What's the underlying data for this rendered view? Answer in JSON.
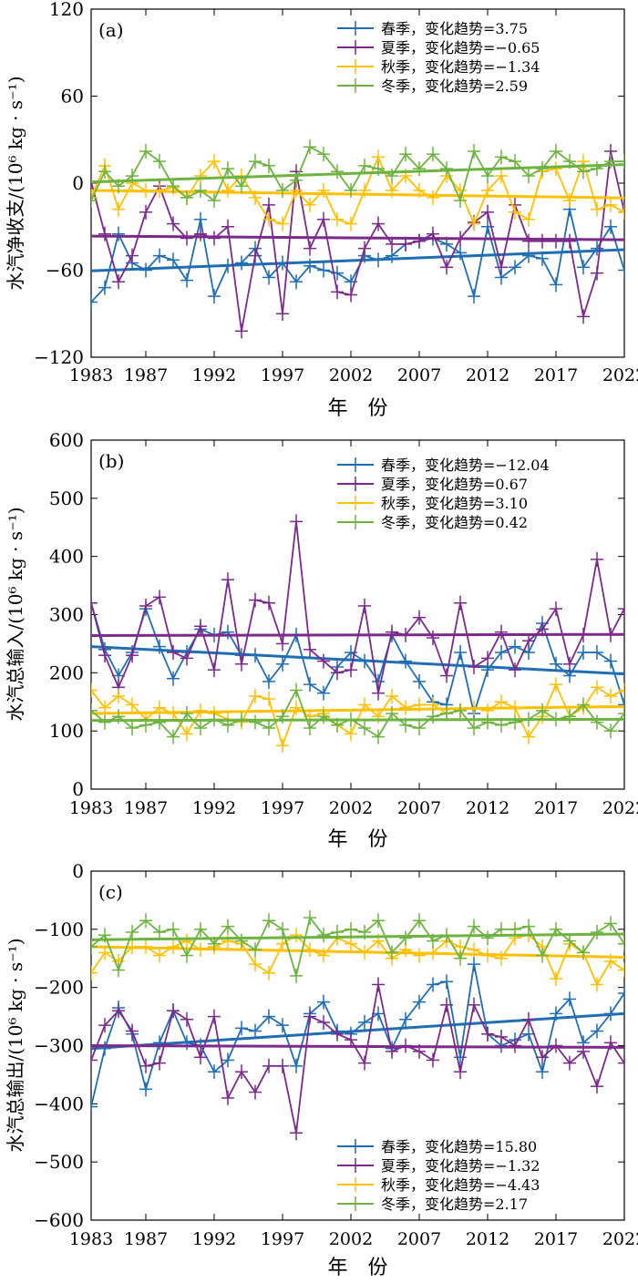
{
  "chart_data": [
    {
      "type": "line",
      "panel_label": "(a)",
      "xlabel": "年　份",
      "ylabel": "水汽净收支/(10⁶ kg · s⁻¹)",
      "ylim": [
        -120,
        120
      ],
      "yticks": [
        -120,
        -60,
        0,
        60,
        120
      ],
      "xlim": [
        1983,
        2022
      ],
      "xticks": [
        1983,
        1987,
        1992,
        1997,
        2002,
        2007,
        2012,
        2017,
        2022
      ],
      "legend_position": "top-right",
      "series": [
        {
          "name": "春季，变化趋势=3.75",
          "color": "#1f6eb4",
          "trend": [
            -60.5,
            -45.9
          ],
          "values": [
            -82,
            -72,
            -35,
            -55,
            -60,
            -50,
            -53,
            -67,
            -25,
            -78,
            -57,
            -55,
            -45,
            -65,
            -55,
            -68,
            -57,
            -60,
            -62,
            -68,
            -50,
            -53,
            -50,
            -42,
            -40,
            -38,
            -42,
            -48,
            -78,
            -30,
            -65,
            -58,
            -50,
            -52,
            -70,
            -18,
            -58,
            -45,
            -30,
            -60
          ]
        },
        {
          "name": "夏季，变化趋势=−0.65",
          "color": "#7b2a8c",
          "trend": [
            -36.5,
            -39.0
          ],
          "values": [
            1,
            -35,
            -68,
            -50,
            -20,
            -2,
            -28,
            -38,
            -35,
            -38,
            -30,
            -102,
            -50,
            -15,
            -90,
            8,
            -45,
            -25,
            -75,
            -77,
            -45,
            -28,
            -42,
            -42,
            -40,
            -35,
            -58,
            -38,
            -27,
            -20,
            -58,
            -15,
            -40,
            -40,
            -40,
            -40,
            -92,
            -62,
            22,
            -20
          ]
        },
        {
          "name": "秋季，变化趋势=−1.34",
          "color": "#ffc000",
          "trend": [
            -5.0,
            -10.2
          ],
          "values": [
            -10,
            12,
            -18,
            0,
            -5,
            -5,
            -3,
            -10,
            5,
            15,
            -5,
            5,
            -10,
            -25,
            -28,
            -5,
            -15,
            -5,
            -25,
            -28,
            -5,
            18,
            -5,
            5,
            -5,
            -10,
            5,
            -5,
            -28,
            -5,
            5,
            -20,
            -25,
            8,
            10,
            -12,
            15,
            -18,
            -15,
            -20
          ]
        },
        {
          "name": "冬季，变化趋势=2.59",
          "color": "#6db33f",
          "trend": [
            0.8,
            12.8
          ],
          "values": [
            -12,
            8,
            -2,
            5,
            22,
            15,
            -2,
            -10,
            -5,
            -12,
            10,
            -2,
            15,
            12,
            -5,
            2,
            25,
            20,
            8,
            -5,
            12,
            10,
            5,
            20,
            10,
            20,
            10,
            -12,
            22,
            5,
            18,
            15,
            5,
            10,
            22,
            15,
            8,
            10,
            15,
            15
          ]
        }
      ]
    },
    {
      "type": "line",
      "panel_label": "(b)",
      "xlabel": "年　份",
      "ylabel": "水汽总输入/(10⁶ kg · s⁻¹)",
      "ylim": [
        0,
        600
      ],
      "yticks": [
        0,
        100,
        200,
        300,
        400,
        500,
        600
      ],
      "xlim": [
        1983,
        2022
      ],
      "xticks": [
        1983,
        1987,
        1992,
        1997,
        2002,
        2007,
        2012,
        2017,
        2022
      ],
      "legend_position": "top-right",
      "series": [
        {
          "name": "春季，变化趋势=−12.04",
          "color": "#1f6eb4",
          "trend": [
            245,
            198
          ],
          "values": [
            320,
            240,
            195,
            235,
            310,
            245,
            190,
            235,
            275,
            265,
            270,
            230,
            230,
            185,
            215,
            265,
            180,
            165,
            210,
            235,
            220,
            185,
            265,
            220,
            185,
            150,
            145,
            235,
            130,
            205,
            235,
            245,
            235,
            285,
            215,
            195,
            235,
            235,
            220,
            145
          ]
        },
        {
          "name": "夏季，变化趋势=0.67",
          "color": "#7b2a8c",
          "trend": [
            264,
            266
          ],
          "values": [
            320,
            230,
            175,
            230,
            315,
            330,
            235,
            225,
            280,
            205,
            360,
            215,
            325,
            320,
            250,
            460,
            240,
            220,
            200,
            205,
            315,
            165,
            270,
            265,
            295,
            260,
            195,
            320,
            210,
            225,
            270,
            205,
            255,
            275,
            310,
            215,
            265,
            395,
            265,
            310
          ]
        },
        {
          "name": "秋季，变化趋势=3.10",
          "color": "#ffc000",
          "trend": [
            130,
            142
          ],
          "values": [
            170,
            140,
            160,
            145,
            120,
            140,
            130,
            95,
            135,
            130,
            120,
            115,
            160,
            155,
            75,
            140,
            125,
            130,
            110,
            95,
            145,
            125,
            160,
            140,
            145,
            145,
            130,
            135,
            140,
            135,
            150,
            140,
            90,
            125,
            180,
            125,
            140,
            175,
            160,
            170
          ]
        },
        {
          "name": "冬季，变化趋势=0.42",
          "color": "#6db33f",
          "trend": [
            118,
            120
          ],
          "values": [
            135,
            115,
            125,
            105,
            110,
            115,
            90,
            130,
            105,
            120,
            110,
            120,
            115,
            105,
            125,
            170,
            105,
            125,
            110,
            120,
            105,
            90,
            130,
            110,
            105,
            125,
            130,
            135,
            105,
            115,
            110,
            115,
            120,
            135,
            120,
            125,
            145,
            115,
            100,
            130
          ]
        }
      ]
    },
    {
      "type": "line",
      "panel_label": "(c)",
      "xlabel": "年　份",
      "ylabel": "水汽总输出/(10⁶ kg · s⁻¹)",
      "ylim": [
        -600,
        0
      ],
      "yticks": [
        -600,
        -500,
        -400,
        -300,
        -200,
        -100,
        0
      ],
      "xlim": [
        1983,
        2022
      ],
      "xticks": [
        1983,
        1987,
        1992,
        1997,
        2002,
        2007,
        2012,
        2017,
        2022
      ],
      "legend_position": "bottom-right",
      "series": [
        {
          "name": "春季，变化趋势=15.80",
          "color": "#1f6eb4",
          "trend": [
            -305,
            -245
          ],
          "values": [
            -405,
            -305,
            -235,
            -280,
            -375,
            -295,
            -240,
            -295,
            -300,
            -345,
            -325,
            -270,
            -275,
            -250,
            -265,
            -335,
            -245,
            -225,
            -275,
            -280,
            -260,
            -245,
            -305,
            -255,
            -225,
            -195,
            -190,
            -320,
            -160,
            -280,
            -300,
            -290,
            -280,
            -345,
            -245,
            -220,
            -295,
            -275,
            -245,
            -210
          ]
        },
        {
          "name": "夏季，变化趋势=−1.32",
          "color": "#7b2a8c",
          "trend": [
            -300,
            -303
          ],
          "values": [
            -325,
            -265,
            -240,
            -275,
            -335,
            -330,
            -240,
            -255,
            -320,
            -250,
            -390,
            -345,
            -380,
            -335,
            -335,
            -450,
            -250,
            -260,
            -280,
            -290,
            -330,
            -195,
            -310,
            -300,
            -310,
            -325,
            -230,
            -345,
            -230,
            -280,
            -285,
            -300,
            -255,
            -320,
            -300,
            -330,
            -310,
            -370,
            -295,
            -330
          ]
        },
        {
          "name": "秋季，变化趋势=−4.43",
          "color": "#ffc000",
          "trend": [
            -130,
            -148
          ],
          "values": [
            -175,
            -140,
            -155,
            -130,
            -130,
            -145,
            -130,
            -120,
            -135,
            -130,
            -120,
            -125,
            -160,
            -175,
            -125,
            -110,
            -135,
            -145,
            -115,
            -125,
            -140,
            -120,
            -150,
            -135,
            -145,
            -140,
            -120,
            -130,
            -135,
            -145,
            -150,
            -115,
            -110,
            -130,
            -185,
            -125,
            -140,
            -195,
            -155,
            -170
          ]
        },
        {
          "name": "冬季，变化趋势=2.17",
          "color": "#6db33f",
          "trend": [
            -118,
            -108
          ],
          "values": [
            -130,
            -110,
            -170,
            -105,
            -85,
            -105,
            -100,
            -145,
            -100,
            -125,
            -95,
            -120,
            -135,
            -85,
            -100,
            -180,
            -80,
            -110,
            -105,
            -100,
            -105,
            -85,
            -140,
            -115,
            -85,
            -120,
            -110,
            -150,
            -95,
            -115,
            -100,
            -100,
            -95,
            -145,
            -100,
            -120,
            -140,
            -105,
            -90,
            -125
          ]
        }
      ]
    }
  ]
}
